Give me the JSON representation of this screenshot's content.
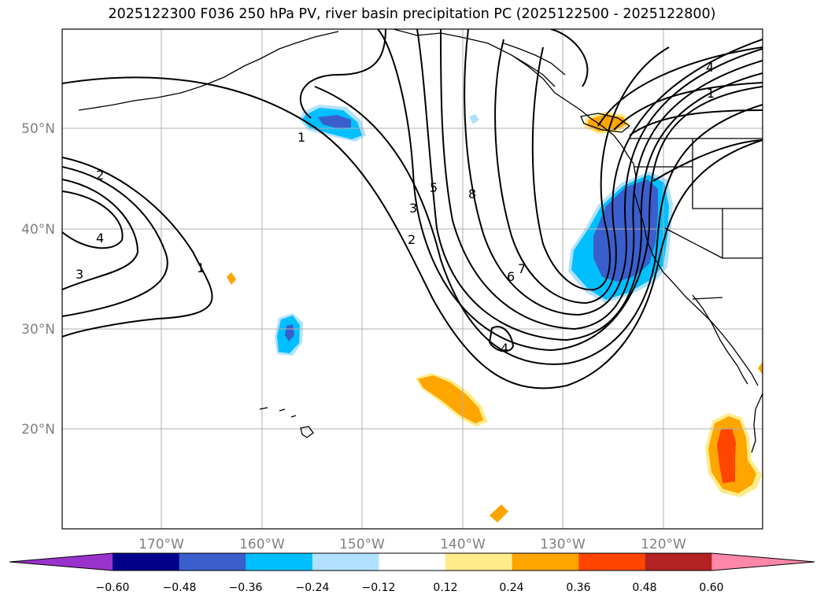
{
  "title": "2025122300 F036 250 hPa PV, river basin precipitation PC (2025122500 - 2025122800)",
  "map": {
    "lat_labels": [
      "50°N",
      "40°N",
      "30°N",
      "20°N"
    ],
    "lon_labels": [
      "170°W",
      "160°W",
      "150°W",
      "140°W",
      "130°W",
      "120°W"
    ],
    "pv_contour_labels": [
      "1",
      "2",
      "3",
      "4",
      "5",
      "6",
      "7",
      "8"
    ]
  },
  "colorbar": {
    "ticks": [
      "−0.60",
      "−0.48",
      "−0.36",
      "−0.24",
      "−0.12",
      "0.12",
      "0.24",
      "0.36",
      "0.48",
      "0.60"
    ],
    "colors": [
      "#9933cc",
      "#00008b",
      "#3a5fcd",
      "#00bfff",
      "#b0e2ff",
      "#ffffff",
      "#ffec8b",
      "#ffa500",
      "#ff4500",
      "#b22222",
      "#ff88aa"
    ]
  }
}
